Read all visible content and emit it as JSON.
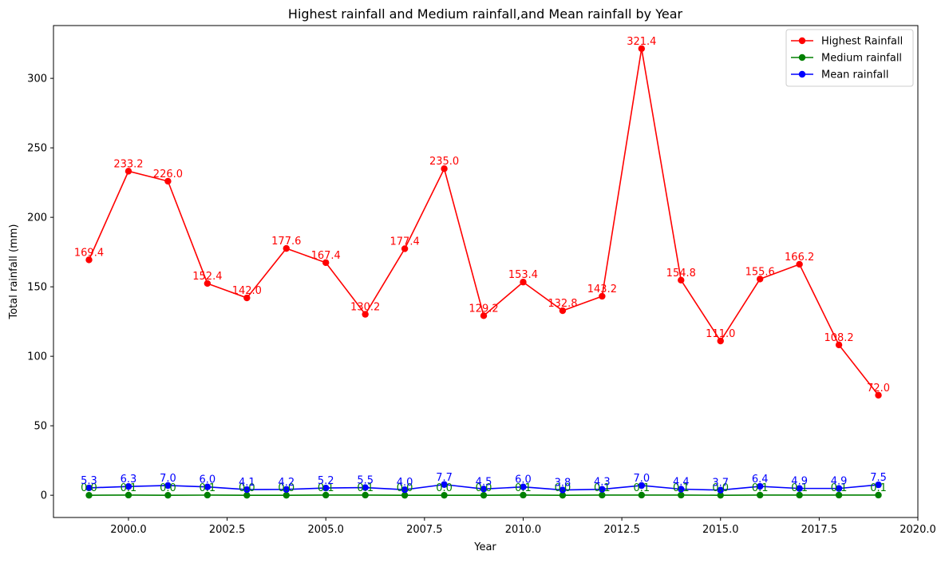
{
  "chart_data": {
    "type": "line",
    "title": "Highest rainfall and Medium rainfall,and Mean rainfall by Year",
    "xlabel": "Year",
    "ylabel": "Total rainfall (mm)",
    "xlim": [
      1998.1,
      2020.0
    ],
    "ylim": [
      -16,
      338
    ],
    "xticks": [
      2000.0,
      2002.5,
      2005.0,
      2007.5,
      2010.0,
      2012.5,
      2015.0,
      2017.5,
      2020.0
    ],
    "xtick_labels": [
      "2000.0",
      "2002.5",
      "2005.0",
      "2007.5",
      "2010.0",
      "2012.5",
      "2015.0",
      "2017.5",
      "2020.0"
    ],
    "yticks": [
      0,
      50,
      100,
      150,
      200,
      250,
      300
    ],
    "ytick_labels": [
      "0",
      "50",
      "100",
      "150",
      "200",
      "250",
      "300"
    ],
    "grid": false,
    "legend_position": "top-right",
    "x": [
      1999,
      2000,
      2001,
      2002,
      2003,
      2004,
      2005,
      2006,
      2007,
      2008,
      2009,
      2010,
      2011,
      2012,
      2013,
      2014,
      2015,
      2016,
      2017,
      2018,
      2019
    ],
    "series": [
      {
        "name": "Highest Rainfall",
        "color": "#ff0000",
        "values": [
          169.4,
          233.2,
          226.0,
          152.4,
          142.0,
          177.6,
          167.4,
          130.2,
          177.4,
          235.0,
          129.2,
          153.4,
          132.8,
          143.2,
          321.4,
          154.8,
          111.0,
          155.6,
          166.2,
          108.2,
          72.0
        ],
        "labels": [
          "169.4",
          "233.2",
          "226.0",
          "152.4",
          "142.0",
          "177.6",
          "167.4",
          "130.2",
          "177.4",
          "235.0",
          "129.2",
          "153.4",
          "132.8",
          "143.2",
          "321.4",
          "154.8",
          "111.0",
          "155.6",
          "166.2",
          "108.2",
          "72.0"
        ]
      },
      {
        "name": "Medium rainfall",
        "color": "#008000",
        "values": [
          0.0,
          0.1,
          0.0,
          0.1,
          0.0,
          0.0,
          0.1,
          0.1,
          0.0,
          0.0,
          0.0,
          0.1,
          0.0,
          0.1,
          0.1,
          0.1,
          0.0,
          0.1,
          0.1,
          0.1,
          0.1
        ],
        "labels": [
          "0.0",
          "0.1",
          "0.0",
          "0.1",
          "0.0",
          "0.0",
          "0.1",
          "0.1",
          "0.0",
          "0.0",
          "0.0",
          "0.1",
          "0.0",
          "0.1",
          "0.1",
          "0.1",
          "0.0",
          "0.1",
          "0.1",
          "0.1",
          "0.1"
        ]
      },
      {
        "name": "Mean rainfall",
        "color": "#0000ff",
        "values": [
          5.3,
          6.3,
          7.0,
          6.0,
          4.1,
          4.2,
          5.2,
          5.5,
          4.0,
          7.7,
          4.5,
          6.0,
          3.8,
          4.3,
          7.0,
          4.4,
          3.7,
          6.4,
          4.9,
          4.9,
          7.5
        ],
        "labels": [
          "5.3",
          "6.3",
          "7.0",
          "6.0",
          "4.1",
          "4.2",
          "5.2",
          "5.5",
          "4.0",
          "7.7",
          "4.5",
          "6.0",
          "3.8",
          "4.3",
          "7.0",
          "4.4",
          "3.7",
          "6.4",
          "4.9",
          "4.9",
          "7.5"
        ]
      }
    ]
  }
}
